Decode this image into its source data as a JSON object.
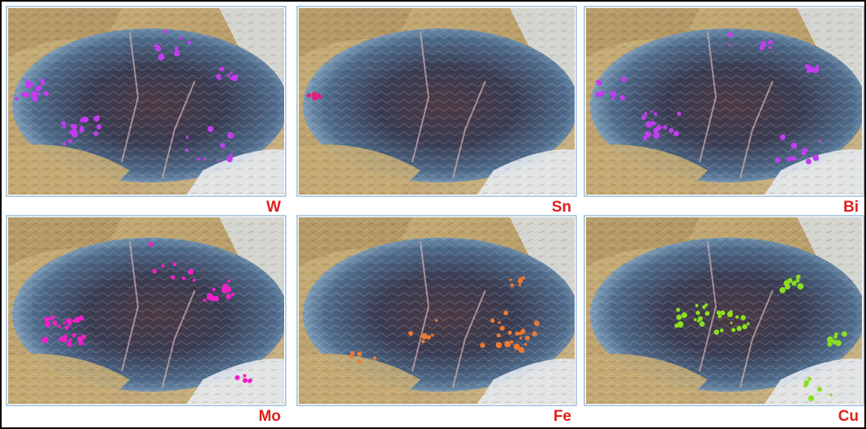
{
  "panels": [
    {
      "label": "W",
      "color": "#c43cf0"
    },
    {
      "label": "Sn",
      "color": "#e0207a"
    },
    {
      "label": "Bi",
      "color": "#c43cf0"
    },
    {
      "label": "Mo",
      "color": "#f020c8"
    },
    {
      "label": "Fe",
      "color": "#f07a30"
    },
    {
      "label": "Cu",
      "color": "#8ae020"
    }
  ]
}
